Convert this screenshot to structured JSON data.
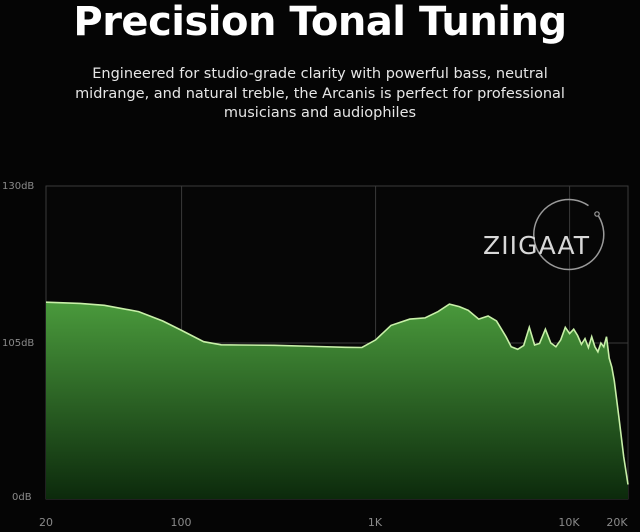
{
  "header": {
    "title": "Precision Tonal Tuning",
    "subtitle_lines": [
      "Engineered for studio-grade clarity with powerful bass, neutral",
      "midrange, and natural treble, the Arcanis is perfect for professional",
      "musicians and audiophiles"
    ]
  },
  "watermark": {
    "text": "ZIIGAAT"
  },
  "colors": {
    "background": "#050505",
    "curve": "#c8f0a8",
    "fill_top": "#4a9a3c",
    "fill_bottom": "#0c2a0c",
    "grid": "#3a3a3a"
  },
  "chart_data": {
    "type": "area",
    "title": "",
    "xlabel": "",
    "ylabel": "",
    "x_scale": "log",
    "xlim": [
      20,
      20000
    ],
    "y_ticks": [
      "0dB",
      "105dB",
      "130dB"
    ],
    "x_tick_labels": [
      "20",
      "100",
      "1K",
      "10K",
      "20K"
    ],
    "x_tick_values": [
      20,
      100,
      1000,
      10000,
      20000
    ],
    "grid": true,
    "series": [
      {
        "x": [
          20,
          30,
          40,
          60,
          80,
          100,
          130,
          160,
          200,
          300,
          500,
          700,
          850,
          1000,
          1200,
          1500,
          1800,
          2100,
          2400,
          2700,
          3000,
          3400,
          3800,
          4200,
          4700,
          5000,
          5400,
          5800,
          6200,
          6600,
          7000,
          7500,
          8000,
          8500,
          9000,
          9500,
          10000,
          10500,
          11000,
          11500,
          12000,
          12500,
          13000,
          13500,
          14000,
          14500,
          15000,
          15500,
          16000,
          16500,
          17000,
          18000,
          19000,
          20000
        ],
        "y": [
          111.5,
          111.3,
          111,
          110,
          108.5,
          107,
          105.2,
          104.3,
          104.2,
          104.1,
          103.6,
          103.3,
          103.2,
          105.5,
          107.8,
          108.8,
          109,
          110,
          111.2,
          110.8,
          110.2,
          108.8,
          109.3,
          108.5,
          106,
          103.5,
          102.5,
          104,
          107.5,
          104.2,
          104.8,
          107.2,
          105,
          103.5,
          105.5,
          107.5,
          106.5,
          107.2,
          106.2,
          104.5,
          105.7,
          103.2,
          106,
          103.5,
          101.5,
          105,
          103.5,
          106,
          99,
          95.5,
          90,
          75,
          60,
          49
        ]
      }
    ]
  }
}
